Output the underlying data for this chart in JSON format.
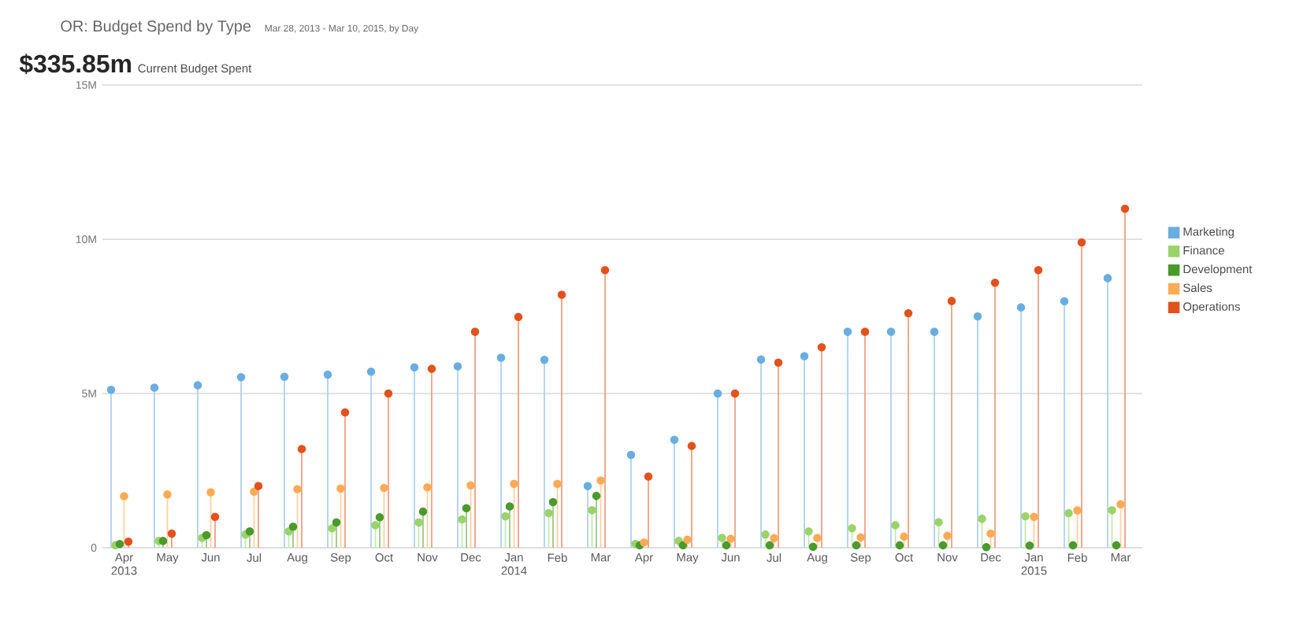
{
  "chart_data": {
    "type": "lollipop",
    "title": "OR: Budget Spend by Type",
    "subtitle": "Mar 28, 2013 - Mar 10, 2015, by Day",
    "annotations": [
      "$335.85m",
      "Current Budget Spent"
    ],
    "categories": [
      "Apr 2013",
      "May",
      "Jun",
      "Jul",
      "Aug",
      "Sep",
      "Oct",
      "Nov",
      "Dec",
      "Jan 2014",
      "Feb",
      "Mar",
      "Apr",
      "May",
      "Jun",
      "Jul",
      "Aug",
      "Sep",
      "Oct",
      "Nov",
      "Dec",
      "Jan 2015",
      "Feb",
      "Mar"
    ],
    "series": [
      {
        "name": "Marketing",
        "color": "#6aaee0",
        "values": [
          5120000,
          5190000,
          5270000,
          5530000,
          5540000,
          5610000,
          5710000,
          5850000,
          5880000,
          6160000,
          6090000,
          2000000,
          3010000,
          3500000,
          5000000,
          6100000,
          6210000,
          7000000,
          7000000,
          7000000,
          7500000,
          7790000,
          7990000,
          8740000
        ]
      },
      {
        "name": "Finance",
        "color": "#9bd36a",
        "values": [
          80000,
          220000,
          320000,
          430000,
          530000,
          630000,
          730000,
          820000,
          920000,
          1020000,
          1120000,
          1220000,
          120000,
          220000,
          320000,
          430000,
          530000,
          630000,
          730000,
          830000,
          940000,
          1020000,
          1120000,
          1220000
        ]
      },
      {
        "name": "Development",
        "color": "#4a9a2e",
        "values": [
          120000,
          220000,
          410000,
          530000,
          680000,
          820000,
          990000,
          1170000,
          1280000,
          1340000,
          1480000,
          1680000,
          80000,
          80000,
          80000,
          80000,
          30000,
          80000,
          80000,
          80000,
          20000,
          70000,
          80000,
          80000
        ]
      },
      {
        "name": "Sales",
        "color": "#fbab55",
        "values": [
          1670000,
          1730000,
          1800000,
          1820000,
          1900000,
          1920000,
          1940000,
          1960000,
          2020000,
          2070000,
          2070000,
          2180000,
          170000,
          260000,
          290000,
          310000,
          320000,
          340000,
          360000,
          390000,
          460000,
          1000000,
          1210000,
          1410000
        ]
      },
      {
        "name": "Operations",
        "color": "#e2521e",
        "values": [
          200000,
          460000,
          1000000,
          2000000,
          3200000,
          4390000,
          5000000,
          5800000,
          7000000,
          7480000,
          8200000,
          9000000,
          2310000,
          3300000,
          5000000,
          6000000,
          6500000,
          7000000,
          7600000,
          8000000,
          8590000,
          9000000,
          9900000,
          10990000
        ]
      }
    ],
    "ylim": [
      0,
      15000000
    ],
    "yticks": [
      0,
      {
        "value": 5000000,
        "label": "5M"
      },
      {
        "value": 10000000,
        "label": "10M"
      },
      {
        "value": 15000000,
        "label": "15M"
      }
    ],
    "grid": "y",
    "legend": "right",
    "marker": "circle"
  }
}
